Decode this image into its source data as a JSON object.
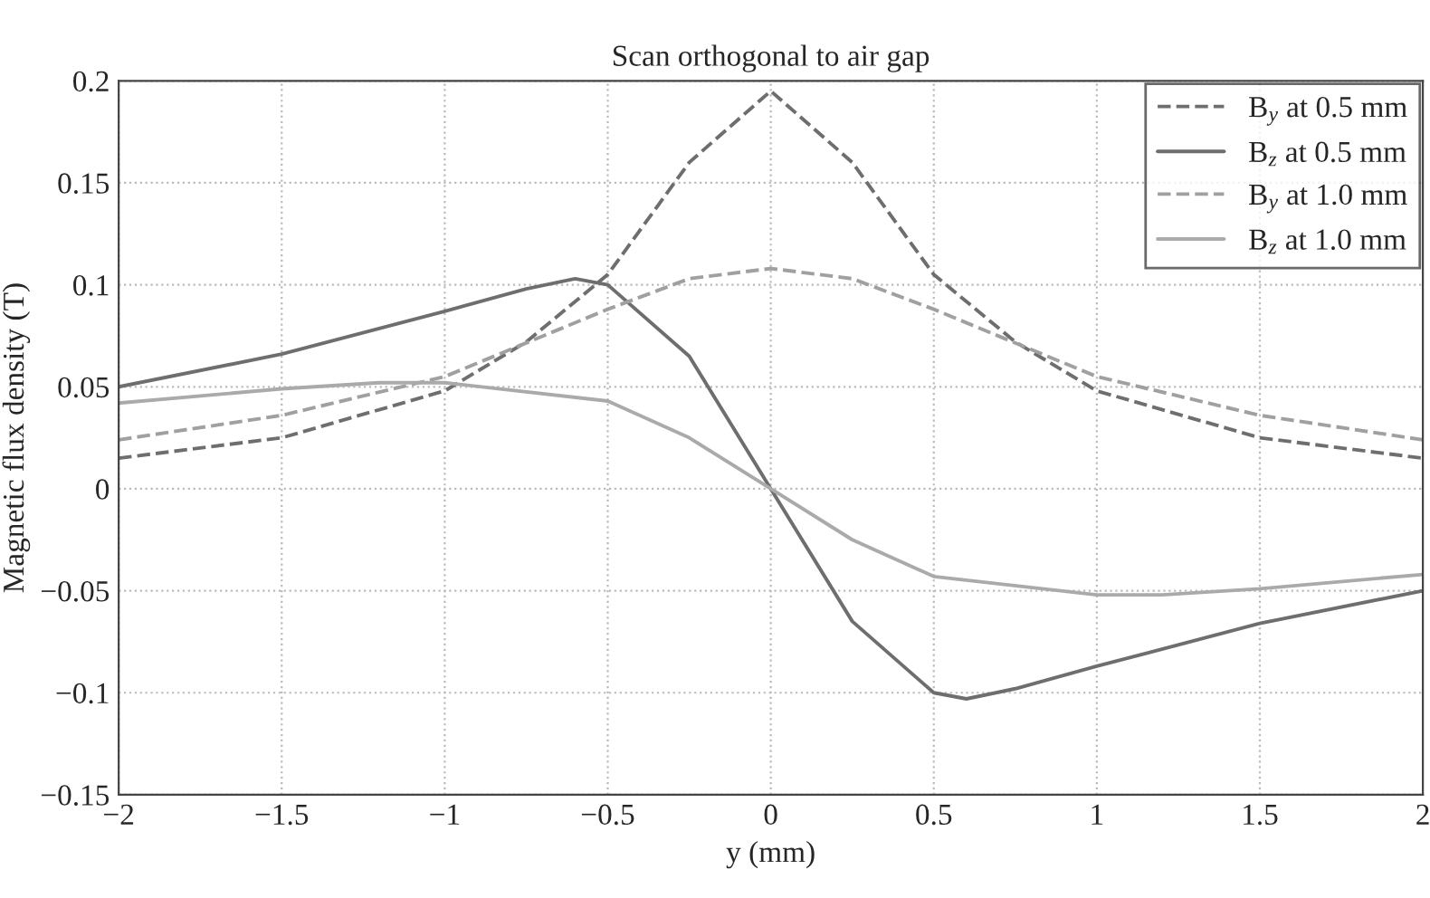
{
  "chart_data": {
    "type": "line",
    "title": "Scan orthogonal to air gap",
    "xlabel": "y (mm)",
    "ylabel": "Magnetic flux density (T)",
    "xlim": [
      -2,
      2
    ],
    "ylim": [
      -0.15,
      0.2
    ],
    "xticks": [
      {
        "value": -2,
        "label": "−2"
      },
      {
        "value": -1.5,
        "label": "−1.5"
      },
      {
        "value": -1,
        "label": "−1"
      },
      {
        "value": -0.5,
        "label": "−0.5"
      },
      0,
      0.5,
      1,
      1.5,
      2
    ],
    "yticks": [
      {
        "value": -0.15,
        "label": "−0.15"
      },
      {
        "value": -0.1,
        "label": "−0.1"
      },
      {
        "value": -0.05,
        "label": "−0.05"
      },
      0,
      0.05,
      0.1,
      0.15,
      0.2
    ],
    "grid": true,
    "legend": "top right",
    "series": [
      {
        "name": "B$_{y}$ at 0.5 mm",
        "color": "#6e6e6e",
        "line_style": "dashed",
        "x": [
          -2,
          -1.5,
          -1,
          -0.75,
          -0.5,
          -0.25,
          0,
          0.25,
          0.5,
          0.75,
          1,
          1.5,
          2
        ],
        "values": [
          0.015,
          0.025,
          0.048,
          0.072,
          0.105,
          0.16,
          0.195,
          0.16,
          0.105,
          0.072,
          0.048,
          0.025,
          0.015
        ]
      },
      {
        "name": "B$_{z}$ at 0.5 mm",
        "color": "#6e6e6e",
        "line_style": "solid",
        "x": [
          -2,
          -1.5,
          -1,
          -0.75,
          -0.6,
          -0.5,
          -0.25,
          0,
          0.25,
          0.5,
          0.6,
          0.75,
          1,
          1.5,
          2
        ],
        "values": [
          0.05,
          0.066,
          0.087,
          0.098,
          0.103,
          0.1,
          0.065,
          0,
          -0.065,
          -0.1,
          -0.103,
          -0.098,
          -0.087,
          -0.066,
          -0.05
        ]
      },
      {
        "name": "B$_{y}$ at 1.0 mm",
        "color": "#a0a0a0",
        "line_style": "dashed",
        "x": [
          -2,
          -1.5,
          -1,
          -0.5,
          -0.25,
          0,
          0.25,
          0.5,
          1,
          1.5,
          2
        ],
        "values": [
          0.024,
          0.036,
          0.055,
          0.088,
          0.103,
          0.108,
          0.103,
          0.088,
          0.055,
          0.036,
          0.024
        ]
      },
      {
        "name": "B$_{z}$ at 1.0 mm",
        "color": "#aaaaaa",
        "line_style": "solid",
        "x": [
          -2,
          -1.5,
          -1.2,
          -1,
          -0.5,
          -0.25,
          0,
          0.25,
          0.5,
          1,
          1.2,
          1.5,
          2
        ],
        "values": [
          0.042,
          0.049,
          0.052,
          0.052,
          0.043,
          0.025,
          0,
          -0.025,
          -0.043,
          -0.052,
          -0.052,
          -0.049,
          -0.042
        ]
      }
    ]
  }
}
